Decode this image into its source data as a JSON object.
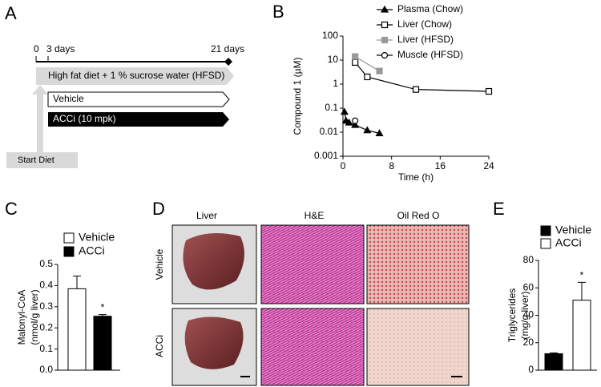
{
  "panel_labels": [
    "A",
    "B",
    "C",
    "D",
    "E"
  ],
  "diagram": {
    "timeline_start": "0",
    "timeline_mark": "3 days",
    "timeline_end": "21 days",
    "diet": "High fat diet + 1 % sucrose water (HFSD)",
    "vehicle": "Vehicle",
    "acci": "ACCi (10 mpk)",
    "start": "Start Diet"
  },
  "images": {
    "columns": [
      "Liver",
      "H&E",
      "Oil Red O"
    ],
    "rows": [
      "Vehicle",
      "ACCi"
    ]
  },
  "chart_data": [
    {
      "type": "line",
      "y_label": "Compound 1 (µM)",
      "x_label": "Time (h)",
      "log_y": true,
      "xlim": [
        0,
        24
      ],
      "xticks": [
        0,
        8,
        16,
        24
      ],
      "ylim": [
        0.001,
        100
      ],
      "yticks": [
        0.001,
        0.01,
        0.1,
        1,
        10,
        100
      ],
      "series": [
        {
          "name": "Plasma (Chow)",
          "color": "#000000",
          "fill": "#000000",
          "marker": "triangle",
          "x": [
            0.25,
            0.5,
            1,
            2,
            4,
            6
          ],
          "values": [
            0.07,
            0.03,
            0.025,
            0.02,
            0.012,
            0.009
          ]
        },
        {
          "name": "Liver (Chow)",
          "color": "#000000",
          "fill": "#ffffff",
          "marker": "square",
          "x": [
            2,
            4,
            12,
            24
          ],
          "values": [
            8,
            2,
            0.6,
            0.5
          ]
        },
        {
          "name": "Liver (HFSD)",
          "color": "#999999",
          "fill": "#999999",
          "marker": "square",
          "x": [
            2,
            6
          ],
          "values": [
            14,
            3.5
          ]
        },
        {
          "name": "Muscle (HFSD)",
          "color": "#000000",
          "fill": "#ffffff",
          "marker": "circle",
          "x": [
            2
          ],
          "values": [
            0.03
          ]
        }
      ]
    },
    {
      "type": "bar",
      "y_label": [
        "Malonyl-CoA",
        "(nmol/g liver)"
      ],
      "categories": [
        null
      ],
      "annotation": "*",
      "ylim": [
        0,
        0.5
      ],
      "yticks": [
        {
          "value": 0,
          "label": "0.0"
        },
        0.1,
        0.2,
        0.3,
        0.4,
        0.5
      ],
      "series": [
        {
          "name": "Vehicle",
          "color": "#ffffff",
          "values": [
            0.385
          ],
          "errors": [
            0.06
          ]
        },
        {
          "name": "ACCi",
          "color": "#000000",
          "values": [
            0.255
          ],
          "errors": [
            0.008
          ]
        }
      ]
    },
    {
      "type": "bar",
      "y_label": [
        "Triglycerides",
        "(mg/g liver)"
      ],
      "categories": [
        null
      ],
      "annotation": "*",
      "ylim": [
        0,
        80
      ],
      "yticks": [
        0,
        20,
        40,
        60,
        80
      ],
      "series": [
        {
          "name": "Vehicle",
          "color": "#000000",
          "values": [
            12
          ],
          "errors": [
            0.6
          ]
        },
        {
          "name": "ACCi",
          "color": "#ffffff",
          "values": [
            51
          ],
          "errors": [
            13
          ]
        }
      ]
    }
  ]
}
